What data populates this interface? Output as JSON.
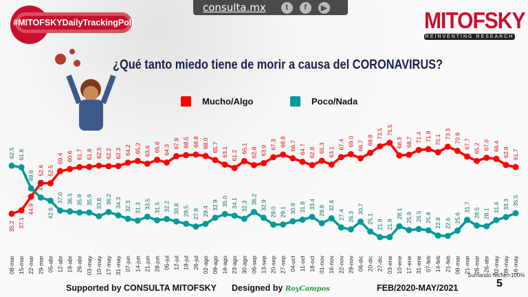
{
  "header": {
    "hashtag": "#MITOFSKYDailyTrackingPoll",
    "site": "consulta.mx",
    "social": [
      "twitter-icon",
      "facebook-icon",
      "youtube-icon"
    ],
    "logo_name": "MITOFSKY",
    "logo_tagline": "REINVENTING RESEARCH"
  },
  "footer": {
    "supported": "Supported by   CONSULTA   MITOFSKY",
    "designed": "Designed by",
    "designer": "RoyCampos",
    "period": "FEB/2020-MAY/2021",
    "note": "Sumando Ns/Nc=100%",
    "page": "5"
  },
  "colors": {
    "red": "#ff0000",
    "teal": "#009999",
    "title": "#1b1f4a"
  },
  "chart_data": {
    "type": "line",
    "title": "¿Qué tanto miedo tiene de morir a causa del CORONAVIRUS?",
    "legend_position": "top-center",
    "categories": [
      "08-mar",
      "15-mar",
      "22-mar",
      "29-mar",
      "05-abr",
      "12-abr",
      "19-abr",
      "26-abr",
      "03-may",
      "10-may",
      "17-may",
      "31-may",
      "07-jun",
      "14-jun",
      "21-jun",
      "28-jun",
      "05-jul",
      "12-jul",
      "19-jul",
      "26-jul",
      "02-ago",
      "09-ago",
      "16-ago",
      "23-ago",
      "30-ago",
      "06-sep",
      "13-sep",
      "20-sep",
      "27-sep",
      "04-oct",
      "11-oct",
      "18-oct",
      "01-nov",
      "16-nov",
      "22-nov",
      "29-nov",
      "06-dic",
      "20-dic",
      "27-dic",
      "03-ene",
      "10-ene",
      "17-ene",
      "31-ene",
      "07-feb",
      "14-feb",
      "21-feb",
      "08-mar",
      "21-mar",
      "28-mar",
      "26-abr",
      "02-may",
      "09-may",
      "16-may"
    ],
    "series": [
      {
        "name": "Mucho/Algo",
        "color": "#ff0000",
        "values": [
          35.2,
          37.1,
          44.9,
          52.6,
          52.5,
          59.4,
          60.6,
          61.7,
          61.8,
          62.5,
          62.2,
          62.3,
          64.2,
          65.2,
          63.6,
          65.8,
          64.3,
          67.9,
          68.5,
          68.8,
          68.0,
          65.7,
          63.1,
          61.2,
          65.1,
          62.8,
          63.9,
          67.3,
          68.8,
          66.7,
          64.7,
          62.8,
          65.3,
          63.1,
          67.4,
          69.0,
          66.7,
          69.8,
          73.5,
          75.5,
          68.3,
          68.7,
          71.4,
          71.9,
          70.1,
          73.3,
          70.9,
          67.7,
          65.2,
          67.0,
          66.4,
          62.9,
          61.7
        ]
      },
      {
        "name": "Poco/Nada",
        "color": "#009999",
        "values": [
          62.5,
          61.6,
          49.6,
          44.4,
          42.6,
          37.0,
          36.5,
          35.9,
          35.9,
          33.8,
          36.2,
          34.3,
          32.3,
          31.3,
          33.5,
          31.5,
          32.2,
          30.8,
          29.5,
          27.9,
          29.4,
          32.9,
          35.0,
          34.1,
          32.3,
          36.2,
          32.9,
          29.0,
          29.1,
          30.9,
          31.8,
          33.4,
          29.8,
          32.6,
          27.4,
          26.3,
          30.7,
          25.1,
          21.9,
          21.9,
          28.1,
          25.9,
          26.5,
          25.8,
          22.8,
          22.6,
          25.6,
          31.7,
          28.5,
          28.1,
          31.6,
          33.3,
          35.5
        ]
      }
    ]
  }
}
